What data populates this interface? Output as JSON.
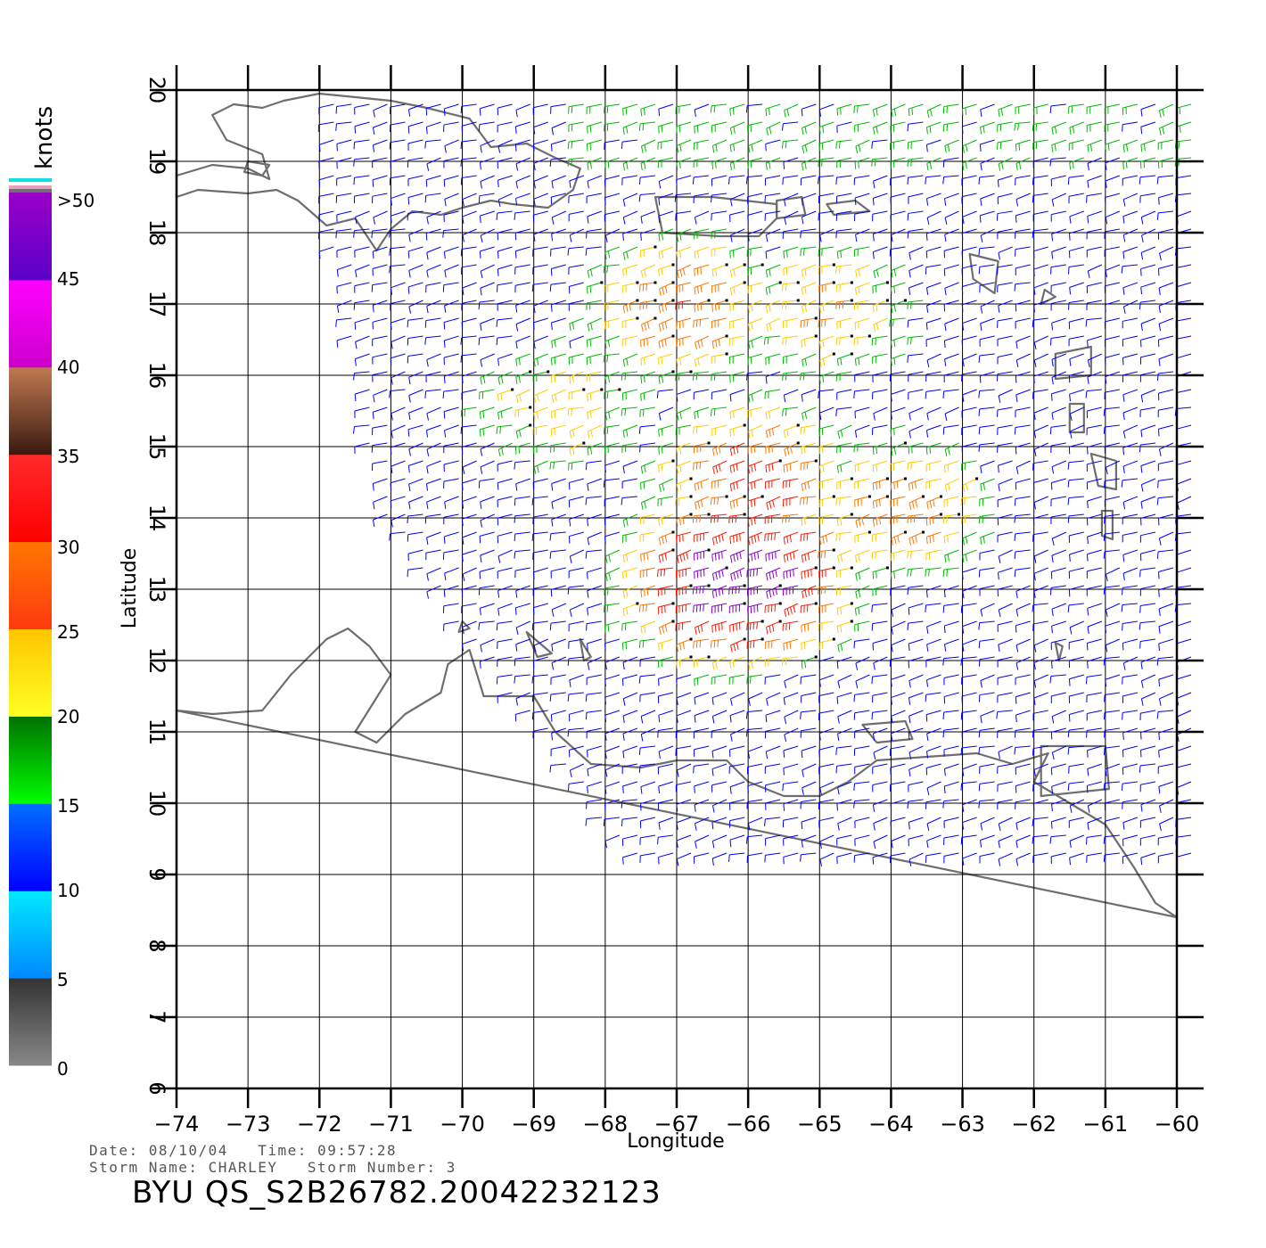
{
  "map": {
    "lon_range": [
      -74,
      -60
    ],
    "lat_range": [
      6,
      20
    ],
    "xlabel": "Longitude",
    "ylabel": "Latitude",
    "grid": true,
    "x_ticks": [
      "−74",
      "−73",
      "−72",
      "−71",
      "−70",
      "−69",
      "−68",
      "−67",
      "−66",
      "−65",
      "−64",
      "−63",
      "−62",
      "−61",
      "−60"
    ],
    "y_ticks": [
      "6",
      "7",
      "8",
      "9",
      "10",
      "11",
      "12",
      "13",
      "14",
      "15",
      "16",
      "17",
      "18",
      "19",
      "20"
    ],
    "coastline_color": "#6e6e6e"
  },
  "legend": {
    "title": "knots",
    "labels": [
      "0",
      "5",
      "10",
      "15",
      "20",
      "25",
      "30",
      "35",
      "40",
      "45",
      ">50"
    ],
    "bands": [
      {
        "from": 0,
        "to": 5,
        "top": "#333333",
        "bottom": "#888888"
      },
      {
        "from": 5,
        "to": 10,
        "top": "#00eaff",
        "bottom": "#0088ff"
      },
      {
        "from": 10,
        "to": 15,
        "top": "#0070ff",
        "bottom": "#0000ff"
      },
      {
        "from": 15,
        "to": 20,
        "top": "#007000",
        "bottom": "#00ff00"
      },
      {
        "from": 20,
        "to": 25,
        "top": "#ffc400",
        "bottom": "#ffff22"
      },
      {
        "from": 25,
        "to": 30,
        "top": "#ff7700",
        "bottom": "#ff3a10"
      },
      {
        "from": 30,
        "to": 35,
        "top": "#ff2a2a",
        "bottom": "#ff0000"
      },
      {
        "from": 35,
        "to": 40,
        "top": "#c07a50",
        "bottom": "#3a1a10"
      },
      {
        "from": 40,
        "to": 45,
        "top": "#ff00ff",
        "bottom": "#cc00cc"
      },
      {
        "from": 45,
        "to": 50,
        "top": "#9a00c8",
        "bottom": "#5a00c8"
      }
    ]
  },
  "wind": {
    "description_colors": [
      "#0000ff",
      "#00cc00",
      "#ffcc00",
      "#ff2a00",
      "#9900cc",
      "#00ccff"
    ],
    "centers": [
      {
        "lon": -66.0,
        "lat": 13.2,
        "speed": 48
      },
      {
        "lon": -65.8,
        "lat": 14.6,
        "speed": 33
      },
      {
        "lon": -66.8,
        "lat": 17.0,
        "speed": 30
      },
      {
        "lon": -64.8,
        "lat": 17.0,
        "speed": 26
      },
      {
        "lon": -63.8,
        "lat": 14.2,
        "speed": 28
      },
      {
        "lon": -68.5,
        "lat": 15.6,
        "speed": 24
      }
    ]
  },
  "footer": {
    "date_line": "Date: 08/10/04   Time: 09:57:28",
    "storm_line": "Storm Name: CHARLEY   Storm Number: 3",
    "pass_id": "BYU  QS_S2B26782.20042232123"
  }
}
